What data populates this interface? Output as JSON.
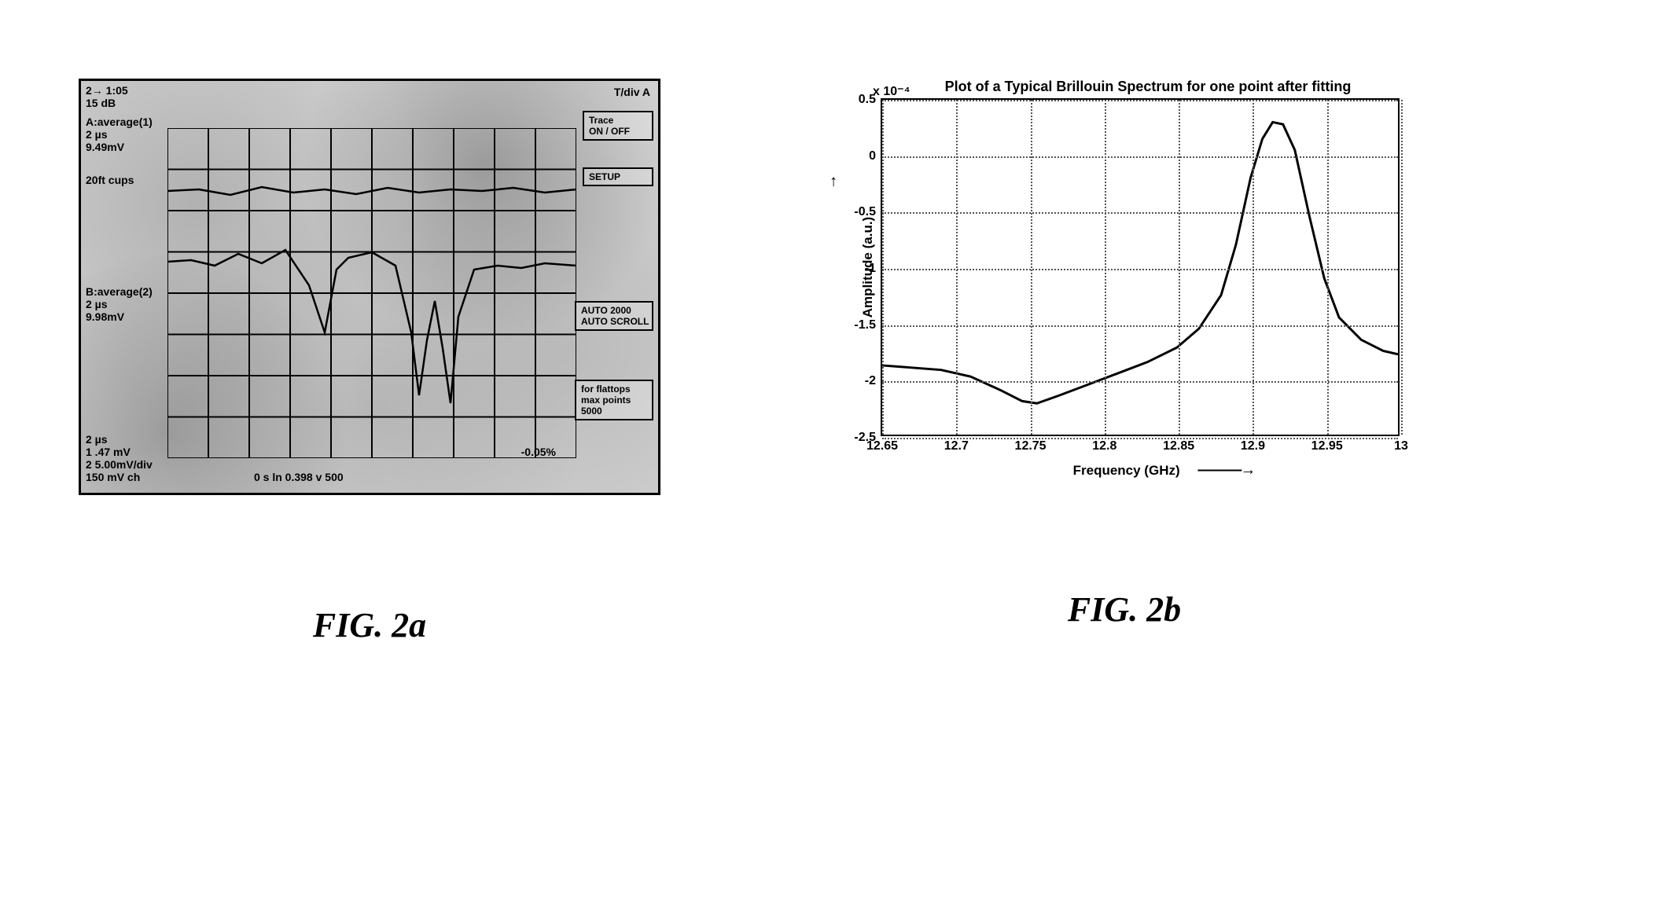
{
  "fig_a": {
    "caption": "FIG. 2a",
    "top_left": [
      "2→ 1:05",
      "15 dB"
    ],
    "channel_a": [
      "A:average(1)",
      "2 µs",
      "9.49mV"
    ],
    "channel_a_sub": "20ft cups",
    "channel_b": [
      "B:average(2)",
      "2 µs",
      "9.98mV"
    ],
    "bottom_info": [
      "2 µs",
      "1 .47 mV",
      "2 5.00mV/div",
      "150 mV ch"
    ],
    "right_top": "T/div A",
    "right_box1": [
      "Trace",
      "ON / OFF"
    ],
    "right_box2": "SETUP",
    "right_box3": [
      "AUTO 2000",
      "AUTO SCROLL"
    ],
    "right_box4": [
      "for flattops",
      "max points",
      "5000"
    ],
    "bottom_center": "0 s  ln  0.398  v 500",
    "bottom_right": "-0.05%",
    "grid": {
      "cols": 10,
      "rows": 8
    },
    "trace1_points": [
      [
        0,
        80
      ],
      [
        40,
        78
      ],
      [
        80,
        85
      ],
      [
        120,
        75
      ],
      [
        160,
        82
      ],
      [
        200,
        78
      ],
      [
        240,
        84
      ],
      [
        280,
        76
      ],
      [
        320,
        82
      ],
      [
        360,
        78
      ],
      [
        400,
        80
      ],
      [
        440,
        76
      ],
      [
        480,
        82
      ],
      [
        520,
        78
      ]
    ],
    "trace2_points": [
      [
        0,
        170
      ],
      [
        30,
        168
      ],
      [
        60,
        175
      ],
      [
        90,
        160
      ],
      [
        120,
        172
      ],
      [
        150,
        155
      ],
      [
        180,
        200
      ],
      [
        200,
        260
      ],
      [
        215,
        180
      ],
      [
        230,
        165
      ],
      [
        260,
        158
      ],
      [
        290,
        175
      ],
      [
        310,
        260
      ],
      [
        320,
        340
      ],
      [
        330,
        270
      ],
      [
        340,
        220
      ],
      [
        350,
        280
      ],
      [
        360,
        350
      ],
      [
        370,
        240
      ],
      [
        390,
        180
      ],
      [
        420,
        175
      ],
      [
        450,
        178
      ],
      [
        480,
        172
      ],
      [
        520,
        175
      ]
    ]
  },
  "fig_b": {
    "caption": "FIG. 2b",
    "exponent": "x 10⁻⁴",
    "title": "Plot of a Typical Brillouin Spectrum for one point after fitting",
    "xlabel": "Frequency (GHz)",
    "ylabel": "Amplitude (a.u.)",
    "xlim": [
      12.65,
      13.0
    ],
    "ylim": [
      -2.5,
      0.5
    ],
    "xticks": [
      12.65,
      12.7,
      12.75,
      12.8,
      12.85,
      12.9,
      12.95,
      13.0
    ],
    "yticks": [
      -2.5,
      -2.0,
      -1.5,
      -1.0,
      -0.5,
      0.0,
      0.5
    ],
    "line_color": "#000000",
    "grid_color": "#555555",
    "background_color": "#ffffff",
    "line_width": 3,
    "series": [
      [
        12.65,
        -1.88
      ],
      [
        12.67,
        -1.9
      ],
      [
        12.69,
        -1.92
      ],
      [
        12.71,
        -1.98
      ],
      [
        12.73,
        -2.1
      ],
      [
        12.745,
        -2.2
      ],
      [
        12.755,
        -2.22
      ],
      [
        12.77,
        -2.15
      ],
      [
        12.79,
        -2.05
      ],
      [
        12.81,
        -1.95
      ],
      [
        12.83,
        -1.85
      ],
      [
        12.85,
        -1.72
      ],
      [
        12.865,
        -1.55
      ],
      [
        12.88,
        -1.25
      ],
      [
        12.89,
        -0.8
      ],
      [
        12.9,
        -0.2
      ],
      [
        12.908,
        0.15
      ],
      [
        12.915,
        0.3
      ],
      [
        12.922,
        0.28
      ],
      [
        12.93,
        0.05
      ],
      [
        12.94,
        -0.55
      ],
      [
        12.95,
        -1.1
      ],
      [
        12.96,
        -1.45
      ],
      [
        12.975,
        -1.65
      ],
      [
        12.99,
        -1.75
      ],
      [
        13.0,
        -1.78
      ]
    ]
  }
}
